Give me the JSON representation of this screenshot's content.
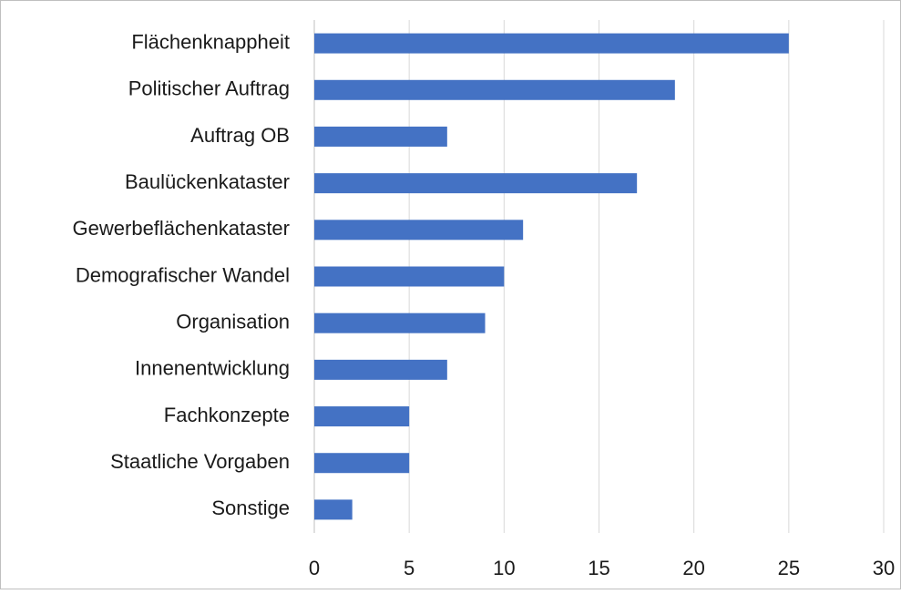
{
  "chart_data": {
    "type": "bar",
    "categories": [
      "Flächenknappheit",
      "Politischer Auftrag",
      "Auftrag OB",
      "Baulückenkataster",
      "Gewerbeflächenkataster",
      "Demografischer Wandel",
      "Organisation",
      "Innenentwicklung",
      "Fachkonzepte",
      "Staatliche Vorgaben",
      "Sonstige"
    ],
    "values": [
      25,
      19,
      7,
      17,
      11,
      10,
      9,
      7,
      5,
      5,
      2
    ],
    "color": "#4472c4",
    "xlim": [
      0,
      30
    ],
    "xticks": [
      0,
      5,
      10,
      15,
      20,
      25,
      30
    ],
    "grid": true
  }
}
